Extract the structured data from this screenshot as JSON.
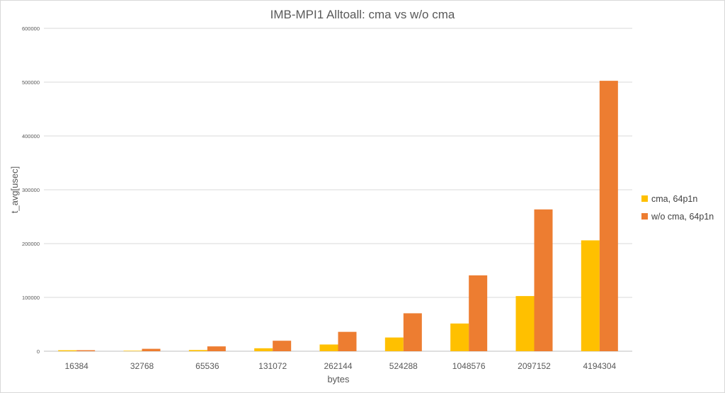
{
  "chart_data": {
    "type": "bar",
    "title": "IMB-MPI1 Alltoall: cma vs w/o cma",
    "xlabel": "bytes",
    "ylabel": "t_avg[usec]",
    "ylim": [
      0,
      600000
    ],
    "yticks": [
      "0",
      "100000",
      "200000",
      "300000",
      "400000",
      "500000",
      "600000"
    ],
    "grid": true,
    "legend_position": "right",
    "categories": [
      "16384",
      "32768",
      "65536",
      "131072",
      "262144",
      "524288",
      "1048576",
      "2097152",
      "4194304"
    ],
    "series": [
      {
        "name": "cma, 64p1n",
        "color": "#FFC000",
        "values": [
          1800,
          900,
          2200,
          5500,
          12500,
          25500,
          51500,
          102500,
          206000
        ]
      },
      {
        "name": "w/o cma, 64p1n",
        "color": "#ED7D31",
        "values": [
          1900,
          4500,
          9000,
          19500,
          36000,
          70500,
          141000,
          263500,
          502500
        ]
      }
    ]
  }
}
